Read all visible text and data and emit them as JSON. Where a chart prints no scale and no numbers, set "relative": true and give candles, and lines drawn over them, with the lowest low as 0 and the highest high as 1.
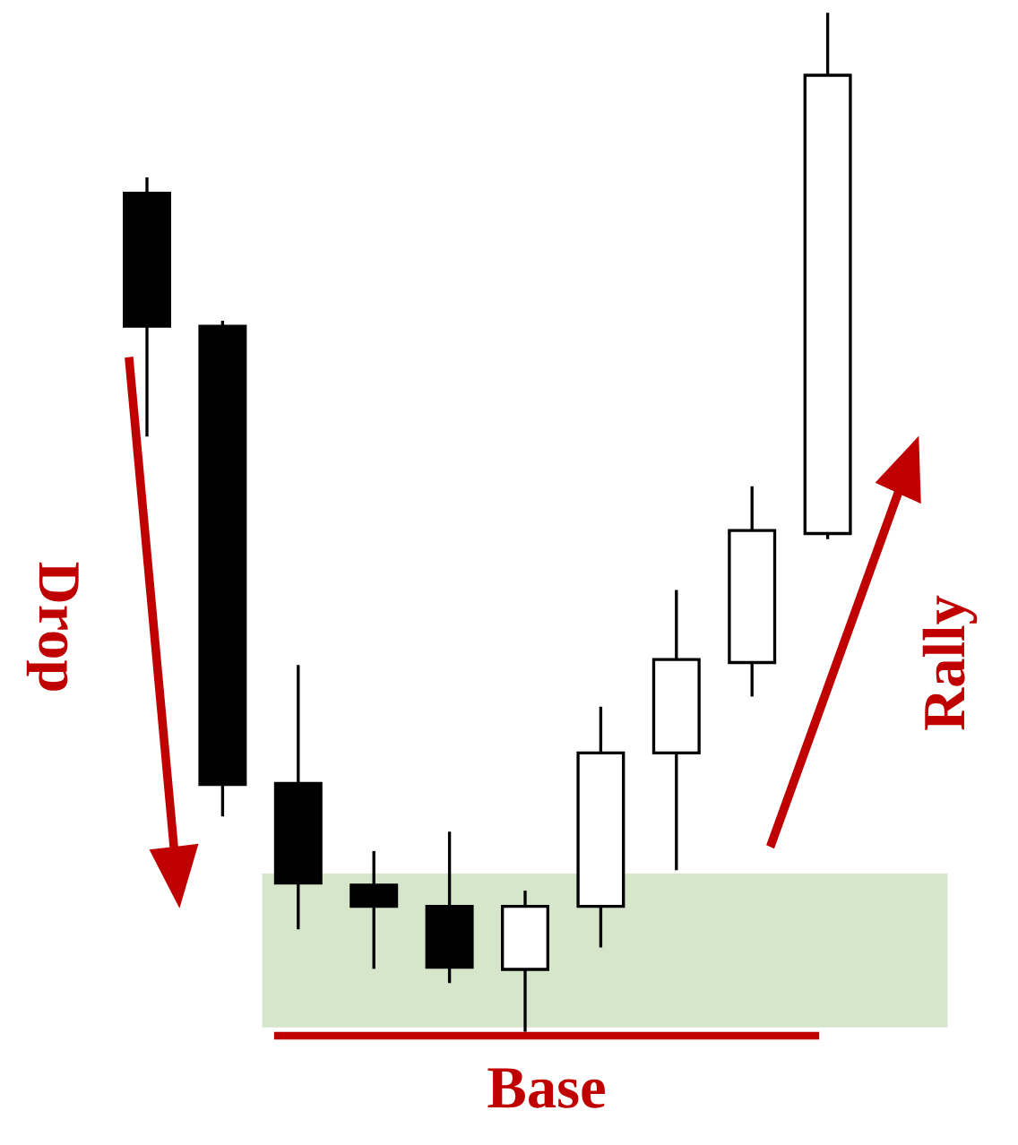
{
  "chart_data": {
    "type": "candlestick",
    "relative": true,
    "categories": [
      null,
      null,
      null,
      null,
      null,
      null,
      null,
      null,
      null,
      null
    ],
    "ohlc": [
      [
        0.824,
        0.838,
        0.586,
        0.693
      ],
      [
        0.693,
        0.697,
        0.212,
        0.242
      ],
      [
        0.243,
        0.358,
        0.101,
        0.145
      ],
      [
        0.143,
        0.175,
        0.062,
        0.122
      ],
      [
        0.122,
        0.194,
        0.048,
        0.062
      ],
      [
        0.06,
        0.136,
        0.0,
        0.122
      ],
      [
        0.122,
        0.317,
        0.083,
        0.273
      ],
      [
        0.273,
        0.432,
        0.159,
        0.365
      ],
      [
        0.362,
        0.534,
        0.33,
        0.492
      ],
      [
        0.489,
        1.0,
        0.485,
        0.94
      ]
    ],
    "bands": [
      {
        "axis": "y",
        "from": 0.004,
        "to": 0.153,
        "color": "#d5e6cb"
      }
    ],
    "annotations": [
      "Drop",
      "Rally",
      "Base"
    ]
  }
}
